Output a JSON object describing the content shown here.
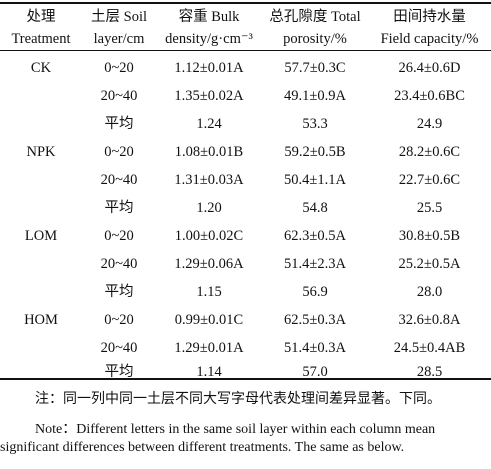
{
  "header": {
    "col_treatment": [
      "处理",
      "Treatment"
    ],
    "col_layer": [
      "土层 Soil",
      "layer/cm"
    ],
    "col_bulk": [
      "容重 Bulk",
      "density/g·cm⁻³"
    ],
    "col_porosity": [
      "总孔隙度 Total",
      "porosity/%"
    ],
    "col_field": [
      "田间持水量",
      "Field capacity/%"
    ]
  },
  "rows": [
    {
      "treatment": "CK",
      "layer": "0~20",
      "bulk": "1.12±0.01A",
      "porosity": "57.7±0.3C",
      "field": "26.4±0.6D"
    },
    {
      "treatment": "",
      "layer": "20~40",
      "bulk": "1.35±0.02A",
      "porosity": "49.1±0.9A",
      "field": "23.4±0.6BC"
    },
    {
      "treatment": "",
      "layer": "平均",
      "bulk": "1.24",
      "porosity": "53.3",
      "field": "24.9"
    },
    {
      "treatment": "NPK",
      "layer": "0~20",
      "bulk": "1.08±0.01B",
      "porosity": "59.2±0.5B",
      "field": "28.2±0.6C"
    },
    {
      "treatment": "",
      "layer": "20~40",
      "bulk": "1.31±0.03A",
      "porosity": "50.4±1.1A",
      "field": "22.7±0.6C"
    },
    {
      "treatment": "",
      "layer": "平均",
      "bulk": "1.20",
      "porosity": "54.8",
      "field": "25.5"
    },
    {
      "treatment": "LOM",
      "layer": "0~20",
      "bulk": "1.00±0.02C",
      "porosity": "62.3±0.5A",
      "field": "30.8±0.5B"
    },
    {
      "treatment": "",
      "layer": "20~40",
      "bulk": "1.29±0.06A",
      "porosity": "51.4±2.3A",
      "field": "25.2±0.5A"
    },
    {
      "treatment": "",
      "layer": "平均",
      "bulk": "1.15",
      "porosity": "56.9",
      "field": "28.0"
    },
    {
      "treatment": "HOM",
      "layer": "0~20",
      "bulk": "0.99±0.01C",
      "porosity": "62.5±0.3A",
      "field": "32.6±0.8A"
    },
    {
      "treatment": "",
      "layer": "20~40",
      "bulk": "1.29±0.01A",
      "porosity": "51.4±0.3A",
      "field": "24.5±0.4AB"
    },
    {
      "treatment": "",
      "layer": "平均",
      "bulk": "1.14",
      "porosity": "57.0",
      "field": "28.5"
    }
  ],
  "notes": {
    "zh": "注：同一列中同一土层不同大写字母代表处理间差异显著。下同。",
    "en_line1": "Note：Different letters in the same soil layer within each column mean",
    "en_line2": "significant differences between different treatments. The same as below."
  }
}
